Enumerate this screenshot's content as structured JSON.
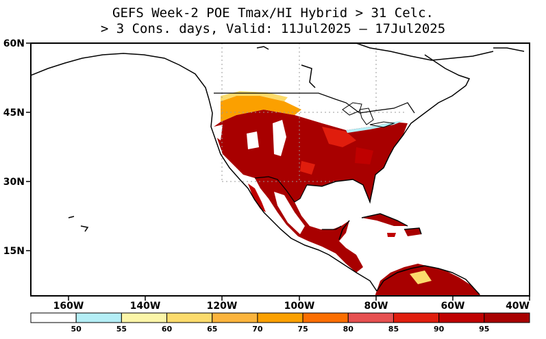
{
  "title_line1": "GEFS Week-2 POE Tmax/HI Hybrid > 31 Celc.",
  "title_line2": "> 3 Cons. days, Valid: 11Jul2025 – 17Jul2025",
  "lat_labels": [
    "60N",
    "45N",
    "30N",
    "15N"
  ],
  "lon_labels": [
    "160W",
    "140W",
    "120W",
    "100W",
    "80W",
    "60W",
    "40W"
  ],
  "colorbar": {
    "colors": [
      "#ffffff",
      "#b4eef6",
      "#fbf5a8",
      "#fbdb6c",
      "#fbb43c",
      "#fba000",
      "#fb6e00",
      "#e65050",
      "#e01d0d",
      "#bf0000",
      "#a80000"
    ],
    "tick_labels": [
      "50",
      "55",
      "60",
      "65",
      "70",
      "75",
      "80",
      "85",
      "90",
      "95"
    ]
  },
  "palette": {
    "land_high": "#a80000",
    "land_mid": "#bf0000",
    "ocean": "#ffffff",
    "outline": "#000000"
  }
}
